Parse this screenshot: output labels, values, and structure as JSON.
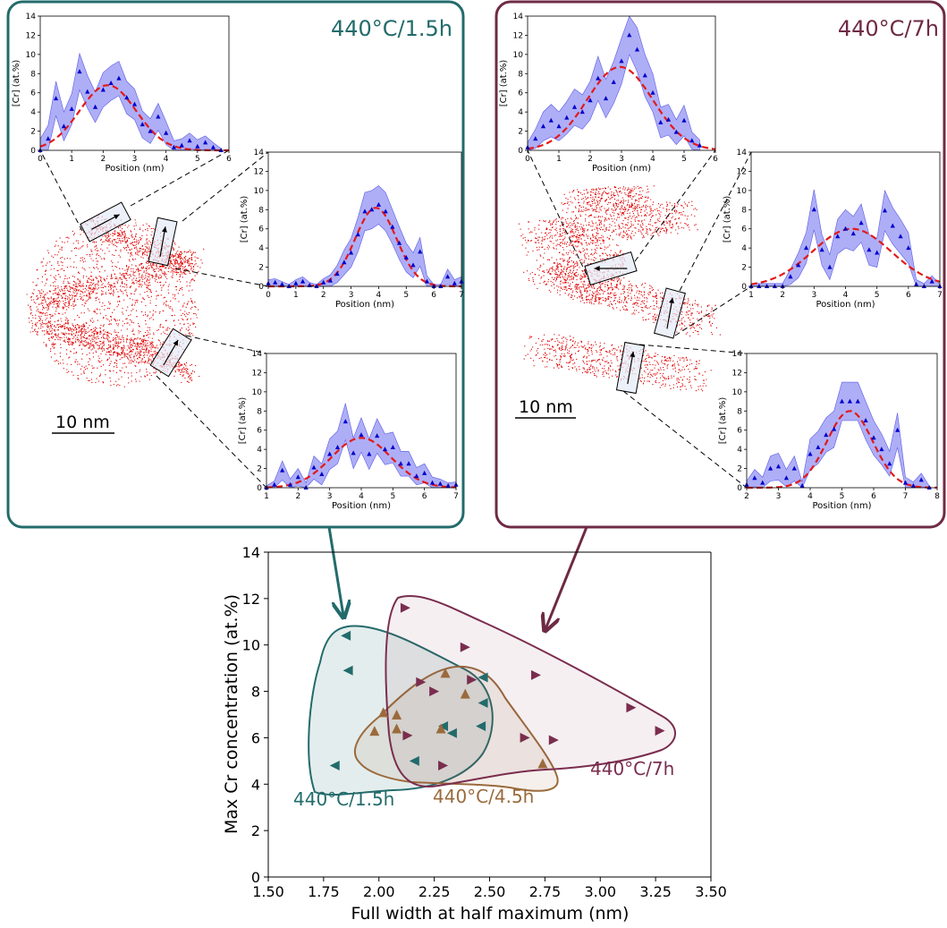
{
  "panels": [
    {
      "title": "440°C/1.5h",
      "color": "#236b6b",
      "scale_bar": "10 nm",
      "insets": [
        {
          "xlabel": "Position (nm)",
          "ylabel": "[Cr] (at.%)",
          "xlim": [
            0,
            6
          ],
          "ylim": [
            0,
            14
          ],
          "xticks": [
            "0",
            "1",
            "2",
            "3",
            "4",
            "5",
            "6"
          ],
          "x": [
            0.0,
            0.25,
            0.5,
            0.75,
            1.0,
            1.25,
            1.5,
            1.75,
            2.0,
            2.25,
            2.5,
            2.75,
            3.0,
            3.25,
            3.5,
            3.75,
            4.0,
            4.25,
            4.5,
            4.75,
            5.0,
            5.25,
            5.5,
            5.75
          ],
          "y": [
            0.0,
            1.2,
            5.4,
            2.5,
            4.3,
            8.2,
            6.1,
            4.5,
            6.3,
            7.0,
            7.5,
            5.5,
            4.8,
            2.7,
            2.0,
            3.5,
            1.8,
            0.3,
            0.5,
            1.0,
            0.4,
            0.8,
            0.3,
            0.0
          ],
          "band": [
            1.2,
            1.4,
            1.8,
            1.5,
            1.6,
            1.9,
            1.7,
            1.6,
            1.8,
            1.8,
            1.8,
            1.7,
            1.6,
            1.4,
            1.3,
            1.4,
            1.2,
            0.7,
            0.7,
            0.8,
            0.7,
            0.7,
            0.5,
            0.2
          ],
          "fit": {
            "a": 6.8,
            "mu": 2.15,
            "sigma": 0.9
          }
        },
        {
          "xlabel": "Position (nm)",
          "ylabel": "[Cr] (at.%)",
          "xlim": [
            0,
            7
          ],
          "ylim": [
            0,
            14
          ],
          "xticks": [
            "0",
            "1",
            "2",
            "3",
            "4",
            "5",
            "6",
            "7"
          ],
          "x": [
            0.0,
            0.25,
            0.5,
            0.75,
            1.0,
            1.25,
            1.5,
            1.75,
            2.0,
            2.25,
            2.5,
            2.75,
            3.0,
            3.25,
            3.5,
            3.75,
            4.0,
            4.25,
            4.5,
            4.75,
            5.0,
            5.25,
            5.5,
            5.75,
            6.0,
            6.25,
            6.5,
            6.75,
            7.0
          ],
          "y": [
            0.3,
            0.4,
            0.2,
            0.0,
            0.3,
            0.5,
            0.1,
            0.0,
            0.4,
            0.6,
            1.3,
            2.5,
            3.5,
            5.4,
            7.8,
            8.0,
            8.5,
            7.8,
            6.2,
            4.5,
            3.0,
            2.2,
            3.6,
            0.5,
            0.0,
            0.0,
            1.0,
            0.3,
            0.5
          ],
          "band": [
            0.4,
            0.4,
            0.3,
            0.2,
            0.4,
            0.5,
            0.3,
            0.2,
            0.4,
            0.6,
            0.9,
            1.3,
            1.5,
            1.8,
            2.0,
            2.0,
            2.0,
            2.0,
            1.8,
            1.7,
            1.5,
            1.3,
            1.5,
            0.6,
            0.2,
            0.2,
            0.8,
            0.4,
            0.5
          ],
          "fit": {
            "a": 8.2,
            "mu": 3.9,
            "sigma": 0.75
          }
        },
        {
          "xlabel": "Position (nm)",
          "ylabel": "[Cr] (at.%)",
          "xlim": [
            1,
            7
          ],
          "ylim": [
            0,
            14
          ],
          "xticks": [
            "1",
            "2",
            "3",
            "4",
            "5",
            "6",
            "7"
          ],
          "x": [
            1.0,
            1.25,
            1.5,
            1.75,
            2.0,
            2.25,
            2.5,
            2.75,
            3.0,
            3.25,
            3.5,
            3.75,
            4.0,
            4.25,
            4.5,
            4.75,
            5.0,
            5.25,
            5.5,
            5.75,
            6.0,
            6.25,
            6.5,
            6.75,
            7.0
          ],
          "y": [
            0.0,
            0.3,
            1.8,
            0.3,
            1.1,
            0.0,
            2.1,
            1.4,
            3.5,
            4.2,
            6.9,
            3.6,
            5.5,
            3.5,
            5.4,
            4.0,
            4.2,
            2.5,
            2.5,
            1.2,
            1.5,
            0.5,
            0.4,
            0.2,
            0.3
          ],
          "band": [
            0.2,
            0.4,
            1.0,
            0.6,
            0.9,
            0.5,
            1.2,
            1.1,
            1.6,
            1.7,
            1.9,
            1.6,
            1.8,
            1.6,
            1.8,
            1.6,
            1.6,
            1.3,
            1.3,
            0.9,
            1.0,
            0.6,
            0.5,
            0.3,
            0.3
          ],
          "fit": {
            "a": 5.2,
            "mu": 4.0,
            "sigma": 0.95
          }
        }
      ]
    },
    {
      "title": "440°C/7h",
      "color": "#6e2a44",
      "scale_bar": "10 nm",
      "insets": [
        {
          "xlabel": "Position (nm)",
          "ylabel": "[Cr] (at.%)",
          "xlim": [
            0,
            6
          ],
          "ylim": [
            0,
            14
          ],
          "xticks": [
            "0",
            "1",
            "2",
            "3",
            "4",
            "5",
            "6"
          ],
          "x": [
            0.0,
            0.25,
            0.5,
            0.75,
            1.0,
            1.25,
            1.5,
            1.75,
            2.0,
            2.25,
            2.5,
            2.75,
            3.0,
            3.25,
            3.5,
            3.75,
            4.0,
            4.25,
            4.5,
            4.75,
            5.0,
            5.25,
            5.5
          ],
          "y": [
            0.3,
            1.2,
            2.5,
            3.1,
            2.5,
            3.4,
            4.5,
            4.0,
            5.2,
            7.5,
            5.4,
            7.1,
            9.3,
            12.0,
            10.5,
            7.8,
            6.0,
            2.9,
            3.2,
            1.9,
            3.1,
            1.0,
            0.5
          ],
          "band": [
            0.5,
            1.0,
            1.5,
            1.7,
            1.5,
            1.7,
            1.9,
            1.8,
            2.0,
            2.3,
            2.0,
            2.2,
            2.4,
            2.0,
            2.3,
            2.2,
            2.0,
            1.6,
            1.6,
            1.3,
            1.6,
            0.9,
            0.6
          ],
          "fit": {
            "a": 8.7,
            "mu": 2.95,
            "sigma": 1.05
          }
        },
        {
          "xlabel": "Position (nm)",
          "ylabel": "[Cr] (at.%)",
          "xlim": [
            1,
            7
          ],
          "ylim": [
            0,
            14
          ],
          "xticks": [
            "1",
            "2",
            "3",
            "4",
            "5",
            "6",
            "7"
          ],
          "x": [
            1.0,
            1.25,
            1.5,
            1.75,
            2.0,
            2.25,
            2.5,
            2.75,
            3.0,
            3.25,
            3.5,
            3.75,
            4.0,
            4.25,
            4.5,
            4.75,
            5.0,
            5.25,
            5.5,
            5.75,
            6.0,
            6.25,
            6.5,
            6.75,
            7.0
          ],
          "y": [
            0.0,
            0.0,
            0.0,
            0.0,
            0.0,
            1.0,
            2.2,
            4.0,
            8.0,
            3.8,
            2.0,
            5.2,
            6.0,
            5.5,
            6.6,
            3.8,
            3.5,
            7.9,
            6.3,
            5.2,
            4.0,
            0.2,
            0.0,
            0.5,
            0.0
          ],
          "band": [
            0.3,
            0.3,
            0.3,
            0.3,
            0.3,
            0.8,
            1.3,
            1.6,
            2.1,
            1.6,
            1.3,
            1.8,
            2.0,
            1.8,
            2.0,
            1.6,
            1.5,
            2.1,
            1.9,
            1.8,
            1.6,
            0.5,
            0.3,
            0.6,
            0.2
          ],
          "fit": {
            "a": 6.0,
            "mu": 4.2,
            "sigma": 1.25
          }
        },
        {
          "xlabel": "Position (nm)",
          "ylabel": "[Cr] (at.%)",
          "xlim": [
            2,
            8
          ],
          "ylim": [
            0,
            14
          ],
          "xticks": [
            "2",
            "3",
            "4",
            "5",
            "6",
            "7",
            "8"
          ],
          "x": [
            2.0,
            2.25,
            2.5,
            2.75,
            3.0,
            3.25,
            3.5,
            3.75,
            4.0,
            4.25,
            4.5,
            4.75,
            5.0,
            5.25,
            5.5,
            5.75,
            6.0,
            6.25,
            6.5,
            6.75,
            7.0,
            7.25,
            7.5,
            7.75
          ],
          "y": [
            0.3,
            1.0,
            0.5,
            2.0,
            2.2,
            1.0,
            2.0,
            0.2,
            3.5,
            4.2,
            5.5,
            6.1,
            9.0,
            9.0,
            9.0,
            7.0,
            5.2,
            4.0,
            2.5,
            6.0,
            0.5,
            0.2,
            0.8,
            0.0
          ],
          "band": [
            0.4,
            0.9,
            0.6,
            1.3,
            1.4,
            0.9,
            1.3,
            0.4,
            1.6,
            1.7,
            1.8,
            1.9,
            2.0,
            2.0,
            2.0,
            2.0,
            1.8,
            1.6,
            1.3,
            1.8,
            0.6,
            0.4,
            0.7,
            0.2
          ],
          "fit": {
            "a": 8.0,
            "mu": 5.25,
            "sigma": 0.72
          }
        }
      ]
    }
  ],
  "chart_data": {
    "type": "scatter",
    "xlabel": "Full width at half maximum (nm)",
    "ylabel": "Max Cr concentration (at.%)",
    "xlim": [
      1.5,
      3.5
    ],
    "ylim": [
      0,
      14
    ],
    "xticks": [
      "1.50",
      "1.75",
      "2.00",
      "2.25",
      "2.50",
      "2.75",
      "3.00",
      "3.25",
      "3.50"
    ],
    "yticks": [
      "0",
      "2",
      "4",
      "6",
      "8",
      "10",
      "12",
      "14"
    ],
    "grid": false,
    "series": [
      {
        "name": "440°C/1.5h",
        "color": "#236b6b",
        "marker": "triangle-left",
        "points": [
          [
            1.85,
            10.4
          ],
          [
            1.86,
            8.9
          ],
          [
            1.8,
            4.8
          ],
          [
            2.16,
            5.0
          ],
          [
            2.29,
            6.5
          ],
          [
            2.33,
            6.2
          ],
          [
            2.47,
            8.6
          ],
          [
            2.47,
            7.5
          ],
          [
            2.46,
            6.5
          ]
        ]
      },
      {
        "name": "440°C/4.5h",
        "color": "#9b6a3c",
        "marker": "triangle-up",
        "points": [
          [
            2.02,
            7.1
          ],
          [
            2.08,
            7.0
          ],
          [
            2.08,
            6.4
          ],
          [
            1.98,
            6.3
          ],
          [
            2.3,
            8.8
          ],
          [
            2.28,
            6.4
          ],
          [
            2.39,
            7.9
          ],
          [
            2.74,
            4.9
          ]
        ]
      },
      {
        "name": "440°C/7h",
        "color": "#7a2d4e",
        "marker": "triangle-right",
        "points": [
          [
            2.12,
            11.6
          ],
          [
            2.39,
            9.9
          ],
          [
            2.71,
            8.7
          ],
          [
            2.19,
            8.4
          ],
          [
            2.25,
            8.0
          ],
          [
            2.42,
            8.5
          ],
          [
            2.13,
            6.1
          ],
          [
            2.29,
            4.8
          ],
          [
            2.66,
            6.0
          ],
          [
            2.79,
            5.9
          ],
          [
            3.14,
            7.3
          ],
          [
            3.27,
            6.3
          ]
        ]
      }
    ],
    "annotations": [
      "440°C/1.5h",
      "440°C/4.5h",
      "440°C/7h"
    ]
  }
}
